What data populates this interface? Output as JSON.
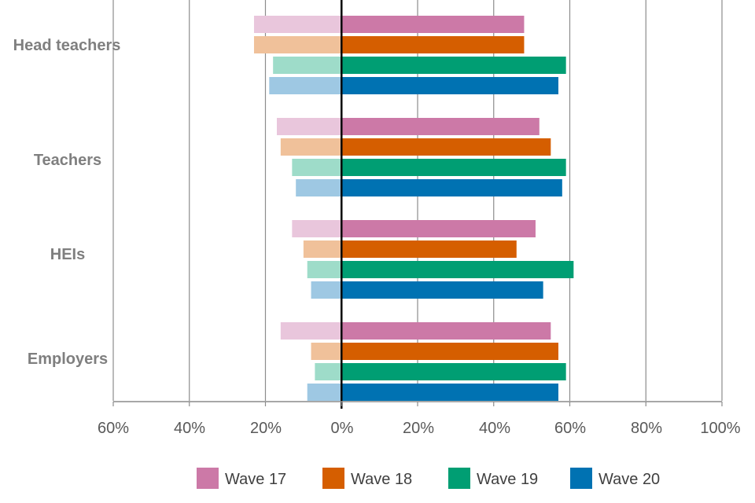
{
  "chart_data": {
    "type": "bar",
    "orientation": "horizontal-diverging",
    "title": "",
    "xlabel": "",
    "ylabel": "",
    "xlim": [
      -60,
      100
    ],
    "x_ticks": [
      -60,
      -40,
      -20,
      0,
      20,
      40,
      60,
      80,
      100
    ],
    "x_tick_labels": [
      "60%",
      "40%",
      "20%",
      "0%",
      "20%",
      "40%",
      "60%",
      "80%",
      "100%"
    ],
    "grid": true,
    "legend_position": "bottom",
    "categories": [
      "Head teachers",
      "Teachers",
      "HEIs",
      "Employers"
    ],
    "series": [
      {
        "name": "Wave 17",
        "color": "#cc79a7",
        "light_color": "#e9c6dc",
        "positive": [
          48,
          52,
          51,
          55
        ],
        "negative": [
          23,
          17,
          13,
          16
        ]
      },
      {
        "name": "Wave 18",
        "color": "#d55e00",
        "light_color": "#f0c19a",
        "positive": [
          48,
          55,
          46,
          57
        ],
        "negative": [
          23,
          16,
          10,
          8
        ]
      },
      {
        "name": "Wave 19",
        "color": "#009e73",
        "light_color": "#9edcc9",
        "positive": [
          59,
          59,
          61,
          59
        ],
        "negative": [
          18,
          13,
          9,
          7
        ]
      },
      {
        "name": "Wave 20",
        "color": "#0072b2",
        "light_color": "#9ec8e3",
        "positive": [
          57,
          58,
          53,
          57
        ],
        "negative": [
          19,
          12,
          8,
          9
        ]
      }
    ]
  }
}
